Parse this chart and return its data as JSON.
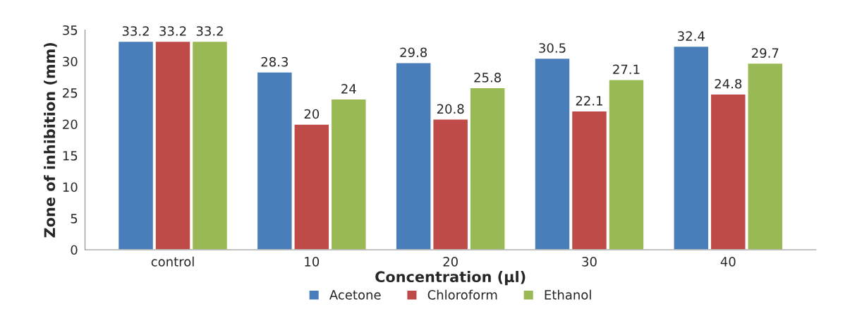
{
  "chart_data": {
    "type": "bar",
    "xlabel": "Concentration (μl)",
    "ylabel": "Zone of inhibition (mm)",
    "categories": [
      "control",
      "10",
      "20",
      "30",
      "40"
    ],
    "series": [
      {
        "name": "Acetone",
        "color": "#4a7ebb",
        "values": [
          33.2,
          28.3,
          29.8,
          30.5,
          32.4
        ]
      },
      {
        "name": "Chloroform",
        "color": "#be4b48",
        "values": [
          33.2,
          20,
          20.8,
          22.1,
          24.8
        ]
      },
      {
        "name": "Ethanol",
        "color": "#98b954",
        "values": [
          33.2,
          24,
          25.8,
          27.1,
          29.7
        ]
      }
    ],
    "ylim": [
      0,
      35
    ],
    "yticks": [
      0,
      5,
      10,
      15,
      20,
      25,
      30,
      35
    ],
    "grid": false,
    "legend": "bottom",
    "data_labels": true
  }
}
